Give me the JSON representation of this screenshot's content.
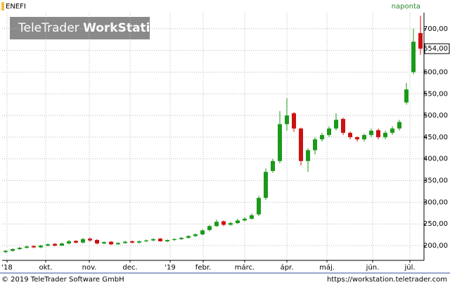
{
  "chart_data": {
    "type": "candlestick",
    "symbol": "ENEFI",
    "period": "naponta",
    "watermark_light": "TeleTrader",
    "watermark_bold": "WorkStation",
    "footer_left": "© 2019 TeleTrader Software GmbH",
    "footer_right": "https://workstation.teletrader.com",
    "up_color": "#1a9a1a",
    "down_color": "#cc1111",
    "grid": true,
    "open": [
      185,
      188,
      192,
      195,
      199,
      196,
      200,
      204,
      200,
      205,
      211,
      207,
      216,
      213,
      205,
      209,
      203,
      206,
      210,
      207,
      210,
      212,
      216,
      210,
      213,
      215,
      218,
      222,
      226,
      236,
      245,
      256,
      248,
      252,
      258,
      262,
      272,
      310,
      372,
      395,
      480,
      505,
      470,
      395,
      420,
      445,
      455,
      470,
      492,
      460,
      450,
      445,
      455,
      466,
      450,
      460,
      470,
      530,
      600,
      690
    ],
    "high": [
      190,
      194,
      197,
      200,
      201,
      202,
      205,
      206,
      207,
      213,
      212,
      218,
      219,
      215,
      210,
      210,
      208,
      211,
      212,
      212,
      214,
      217,
      218,
      214,
      217,
      220,
      224,
      228,
      238,
      248,
      260,
      258,
      255,
      262,
      266,
      274,
      315,
      378,
      400,
      510,
      540,
      508,
      472,
      425,
      450,
      460,
      475,
      505,
      495,
      463,
      452,
      458,
      470,
      470,
      465,
      475,
      490,
      575,
      700,
      730
    ],
    "low": [
      183,
      186,
      190,
      193,
      194,
      194,
      198,
      198,
      199,
      203,
      205,
      205,
      209,
      203,
      203,
      201,
      202,
      204,
      205,
      205,
      208,
      210,
      209,
      208,
      211,
      213,
      216,
      220,
      224,
      233,
      243,
      245,
      246,
      250,
      256,
      260,
      268,
      305,
      368,
      390,
      465,
      462,
      385,
      370,
      410,
      440,
      450,
      465,
      455,
      445,
      440,
      440,
      450,
      445,
      445,
      455,
      465,
      525,
      595,
      640
    ],
    "close": [
      188,
      192,
      195,
      198,
      196,
      200,
      203,
      200,
      205,
      210,
      207,
      215,
      212,
      205,
      208,
      203,
      206,
      209,
      207,
      210,
      212,
      215,
      210,
      213,
      215,
      218,
      222,
      226,
      235,
      245,
      255,
      248,
      252,
      258,
      262,
      270,
      310,
      370,
      395,
      480,
      500,
      470,
      395,
      420,
      445,
      455,
      470,
      490,
      460,
      450,
      445,
      455,
      465,
      450,
      460,
      470,
      485,
      560,
      670,
      654
    ],
    "last_price": {
      "value": 654,
      "label": "654,00"
    },
    "xlim": [
      0,
      60
    ],
    "xticks": [
      {
        "value": 0.7,
        "label": "'18"
      },
      {
        "value": 6.2,
        "label": "okt."
      },
      {
        "value": 12.4,
        "label": "nov."
      },
      {
        "value": 18.2,
        "label": "dec."
      },
      {
        "value": 23.9,
        "label": "'19"
      },
      {
        "value": 28.6,
        "label": "febr."
      },
      {
        "value": 34.5,
        "label": "márc."
      },
      {
        "value": 40.5,
        "label": "ápr."
      },
      {
        "value": 46.2,
        "label": "máj."
      },
      {
        "value": 52.7,
        "label": "jún."
      },
      {
        "value": 58.0,
        "label": "júl."
      }
    ],
    "ylim": [
      166,
      737
    ],
    "yticks": [
      {
        "value": 200,
        "label": "200,00"
      },
      {
        "value": 250,
        "label": "250,00"
      },
      {
        "value": 300,
        "label": "300,00"
      },
      {
        "value": 350,
        "label": "350,00"
      },
      {
        "value": 400,
        "label": "400,00"
      },
      {
        "value": 450,
        "label": "450,00"
      },
      {
        "value": 500,
        "label": "500,00"
      },
      {
        "value": 550,
        "label": "550,00"
      },
      {
        "value": 600,
        "label": "600,00"
      },
      {
        "value": 650,
        "label": "650,00"
      },
      {
        "value": 700,
        "label": "700,00"
      }
    ]
  }
}
